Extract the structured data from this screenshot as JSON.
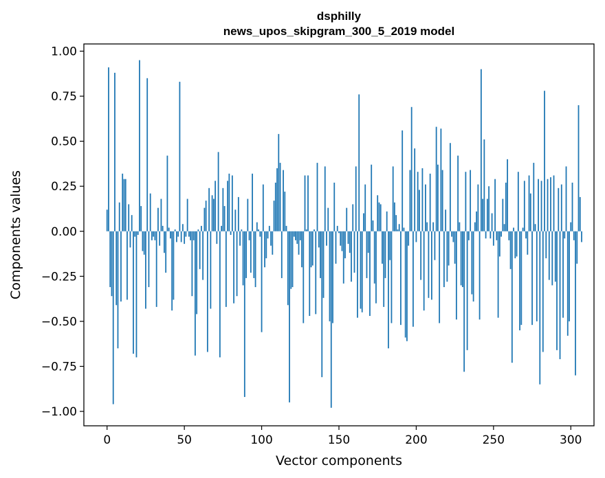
{
  "chart_data": {
    "type": "bar",
    "title_lines": [
      "dsphilly",
      "news_upos_skipgram_300_5_2019 model"
    ],
    "xlabel": "Vector components",
    "ylabel": "Components values",
    "xlim": [
      -15,
      315
    ],
    "ylim": [
      -1.08,
      1.04
    ],
    "xticks": [
      0,
      50,
      100,
      150,
      200,
      250,
      300
    ],
    "xtick_labels": [
      "0",
      "50",
      "100",
      "150",
      "200",
      "250",
      "300"
    ],
    "yticks": [
      1.0,
      0.75,
      0.5,
      0.25,
      0.0,
      -0.25,
      -0.5,
      -0.75,
      -1.0
    ],
    "ytick_labels": [
      "1.00",
      "0.75",
      "0.50",
      "0.25",
      "0.00",
      "−0.25",
      "−0.50",
      "−0.75",
      "−1.00"
    ],
    "bar_color": "#1f77b4",
    "series": [
      {
        "name": "dsphilly",
        "values": [
          0.12,
          0.91,
          -0.31,
          -0.36,
          -0.96,
          0.88,
          -0.41,
          -0.65,
          0.16,
          -0.39,
          0.32,
          0.29,
          0.29,
          -0.38,
          0.15,
          -0.09,
          0.09,
          -0.68,
          -0.03,
          -0.7,
          -0.02,
          0.95,
          0.14,
          -0.11,
          -0.13,
          -0.43,
          0.85,
          -0.31,
          0.21,
          -0.05,
          -0.03,
          -0.05,
          -0.42,
          0.13,
          -0.08,
          0.18,
          0.03,
          -0.12,
          -0.23,
          0.42,
          0.02,
          -0.04,
          -0.44,
          -0.38,
          0.01,
          -0.06,
          -0.03,
          0.83,
          -0.06,
          0.04,
          -0.07,
          -0.03,
          0.18,
          -0.03,
          -0.05,
          -0.36,
          -0.05,
          -0.69,
          -0.46,
          0.01,
          -0.21,
          0.03,
          -0.27,
          0.13,
          0.17,
          -0.67,
          0.24,
          -0.43,
          0.2,
          0.18,
          0.28,
          -0.07,
          0.44,
          -0.7,
          0.03,
          0.24,
          0.14,
          -0.42,
          0.28,
          0.32,
          -0.02,
          0.31,
          -0.4,
          0.12,
          -0.36,
          0.19,
          -0.08,
          0.01,
          -0.3,
          -0.92,
          -0.26,
          0.18,
          -0.05,
          -0.23,
          0.32,
          -0.26,
          -0.31,
          0.05,
          0.01,
          -0.03,
          -0.56,
          0.26,
          -0.2,
          -0.15,
          -0.04,
          0.03,
          -0.08,
          -0.13,
          0.17,
          0.27,
          0.35,
          0.54,
          0.38,
          -0.26,
          0.34,
          0.22,
          0.03,
          -0.41,
          -0.95,
          -0.32,
          -0.31,
          -0.03,
          -0.05,
          -0.07,
          -0.13,
          -0.05,
          -0.2,
          -0.51,
          0.31,
          0.01,
          0.31,
          -0.47,
          -0.2,
          -0.19,
          0.01,
          -0.46,
          0.38,
          -0.09,
          -0.26,
          -0.81,
          -0.37,
          0.36,
          -0.08,
          0.13,
          -0.5,
          -0.98,
          -0.51,
          0.27,
          -0.18,
          0.03,
          -0.01,
          -0.08,
          -0.11,
          -0.29,
          -0.15,
          0.13,
          -0.07,
          -0.12,
          -0.28,
          0.15,
          -0.23,
          0.36,
          -0.48,
          0.76,
          -0.43,
          -0.45,
          0.1,
          0.26,
          -0.26,
          -0.12,
          -0.47,
          0.37,
          0.06,
          -0.29,
          -0.4,
          0.2,
          0.16,
          0.15,
          -0.18,
          -0.42,
          -0.26,
          0.11,
          -0.65,
          -0.16,
          -0.51,
          0.36,
          0.16,
          0.09,
          0.01,
          0.04,
          -0.52,
          0.56,
          0.02,
          -0.59,
          -0.61,
          -0.08,
          0.34,
          0.69,
          -0.53,
          0.46,
          -0.06,
          0.33,
          0.23,
          -0.27,
          0.35,
          -0.44,
          0.26,
          0.05,
          -0.37,
          0.32,
          -0.38,
          0.05,
          -0.16,
          0.58,
          0.37,
          -0.51,
          0.57,
          0.34,
          -0.31,
          0.12,
          -0.28,
          -0.19,
          0.49,
          -0.03,
          -0.06,
          -0.18,
          -0.49,
          0.42,
          0.05,
          -0.3,
          -0.31,
          -0.78,
          0.33,
          -0.66,
          -0.05,
          0.34,
          -0.35,
          -0.39,
          0.05,
          0.11,
          0.26,
          -0.49,
          0.9,
          0.18,
          0.51,
          -0.04,
          0.18,
          0.25,
          -0.04,
          0.1,
          -0.08,
          0.29,
          -0.05,
          -0.48,
          -0.14,
          -0.03,
          0.18,
          0.04,
          0.27,
          0.4,
          -0.05,
          -0.21,
          -0.73,
          0.02,
          -0.15,
          -0.14,
          0.33,
          -0.55,
          -0.52,
          0.02,
          0.28,
          -0.04,
          -0.13,
          0.31,
          0.21,
          -0.52,
          0.38,
          0.04,
          -0.5,
          0.29,
          -0.85,
          0.28,
          -0.67,
          0.78,
          -0.15,
          0.29,
          -0.27,
          0.3,
          -0.3,
          0.31,
          -0.28,
          -0.66,
          0.24,
          -0.71,
          0.26,
          -0.48,
          -0.04,
          0.36,
          -0.58,
          -0.5,
          0.05,
          0.27,
          -0.05,
          -0.8,
          -0.18,
          0.7,
          0.19,
          -0.06
        ]
      }
    ]
  }
}
